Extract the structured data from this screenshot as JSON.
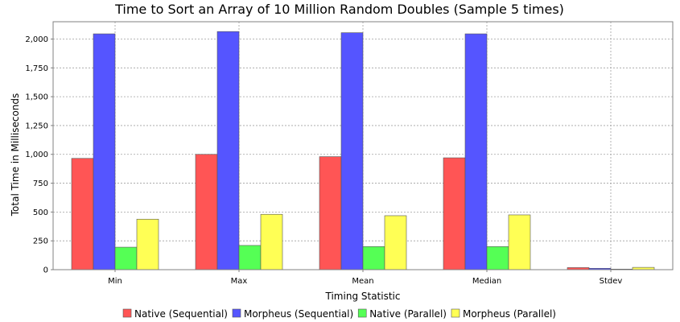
{
  "chart_data": {
    "type": "bar",
    "title": "Time to Sort an Array of 10 Million Random Doubles (Sample 5 times)",
    "xlabel": "Timing Statistic",
    "ylabel": "Total Time in Milliseconds",
    "categories": [
      "Min",
      "Max",
      "Mean",
      "Median",
      "Stdev"
    ],
    "ylim": [
      0,
      2150
    ],
    "yticks": [
      0,
      250,
      500,
      750,
      1000,
      1250,
      1500,
      1750,
      2000
    ],
    "ytick_labels": [
      "0",
      "250",
      "500",
      "750",
      "1,000",
      "1,250",
      "1,500",
      "1,750",
      "2,000"
    ],
    "grid": true,
    "legend_position": "bottom",
    "series": [
      {
        "name": "Native (Sequential)",
        "color": "#ff5555",
        "values": [
          965,
          1000,
          980,
          970,
          18
        ]
      },
      {
        "name": "Morpheus (Sequential)",
        "color": "#5555ff",
        "values": [
          2045,
          2065,
          2055,
          2045,
          12
        ]
      },
      {
        "name": "Native (Parallel)",
        "color": "#55ff55",
        "values": [
          195,
          210,
          200,
          200,
          5
        ]
      },
      {
        "name": "Morpheus (Parallel)",
        "color": "#ffff55",
        "values": [
          438,
          480,
          468,
          475,
          20
        ]
      }
    ]
  }
}
